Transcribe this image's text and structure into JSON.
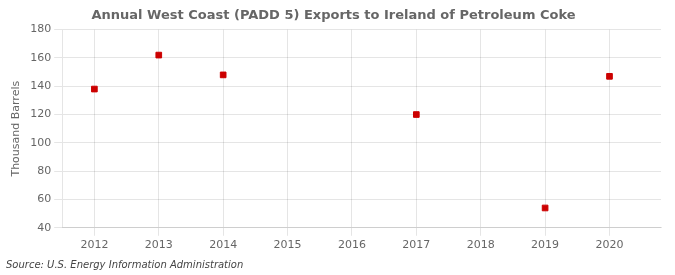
{
  "chart_data": {
    "type": "scatter",
    "title": "Annual West Coast (PADD 5) Exports to Ireland of Petroleum Coke",
    "ylabel": "Thousand Barrels",
    "source": "Source: U.S. Energy Information Administration",
    "x": [
      2012,
      2013,
      2014,
      2017,
      2019,
      2020
    ],
    "values": [
      138,
      162,
      148,
      120,
      54,
      147
    ],
    "color": "#cc0000",
    "marker": "square",
    "xlim": [
      2011.5,
      2020.8
    ],
    "xticks": [
      2012,
      2013,
      2014,
      2015,
      2016,
      2017,
      2018,
      2019,
      2020
    ],
    "ylim": [
      40,
      180
    ],
    "yticks": [
      40,
      60,
      80,
      100,
      120,
      140,
      160,
      180
    ],
    "grid": true
  }
}
